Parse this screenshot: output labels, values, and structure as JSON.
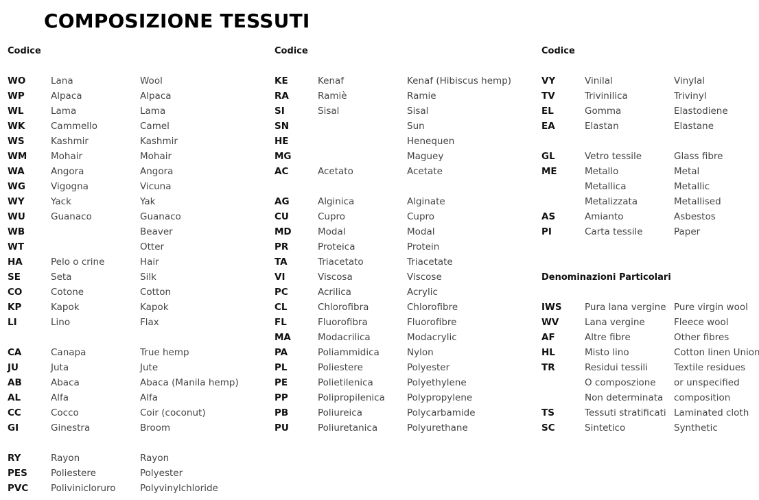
{
  "title": "COMPOSIZIONE TESSUTI",
  "columns": [
    {
      "rows": [
        {
          "header": "Codice"
        },
        {},
        {
          "code": "WO",
          "it": "Lana",
          "en": "Wool"
        },
        {
          "code": "WP",
          "it": "Alpaca",
          "en": "Alpaca"
        },
        {
          "code": "WL",
          "it": "Lama",
          "en": "Lama"
        },
        {
          "code": "WK",
          "it": "Cammello",
          "en": "Camel"
        },
        {
          "code": "WS",
          "it": "Kashmir",
          "en": "Kashmir"
        },
        {
          "code": "WM",
          "it": "Mohair",
          "en": "Mohair"
        },
        {
          "code": "WA",
          "it": "Angora",
          "en": "Angora"
        },
        {
          "code": "WG",
          "it": "Vigogna",
          "en": "Vicuna"
        },
        {
          "code": "WY",
          "it": "Yack",
          "en": "Yak"
        },
        {
          "code": "WU",
          "it": "Guanaco",
          "en": "Guanaco"
        },
        {
          "code": "WB",
          "it": "",
          "en": "Beaver"
        },
        {
          "code": "WT",
          "it": "",
          "en": "Otter"
        },
        {
          "code": "HA",
          "it": "Pelo o crine",
          "en": "Hair"
        },
        {
          "code": "SE",
          "it": "Seta",
          "en": "Silk"
        },
        {
          "code": "CO",
          "it": "Cotone",
          "en": "Cotton"
        },
        {
          "code": "KP",
          "it": "Kapok",
          "en": "Kapok"
        },
        {
          "code": "LI",
          "it": "Lino",
          "en": "Flax"
        },
        {},
        {
          "code": "CA",
          "it": "Canapa",
          "en": "True hemp"
        },
        {
          "code": "JU",
          "it": "Juta",
          "en": "Jute"
        },
        {
          "code": "AB",
          "it": "Abaca",
          "en": "Abaca (Manila hemp)"
        },
        {
          "code": "AL",
          "it": "Alfa",
          "en": "Alfa"
        },
        {
          "code": "CC",
          "it": "Cocco",
          "en": "Coir (coconut)"
        },
        {
          "code": "GI",
          "it": "Ginestra",
          "en": "Broom"
        },
        {},
        {
          "code": "RY",
          "it": "Rayon",
          "en": "Rayon"
        },
        {
          "code": "PES",
          "it": "Poliestere",
          "en": "Polyester"
        },
        {
          "code": "PVC",
          "it": "Polivinicloruro",
          "en": "Polyvinylchloride"
        }
      ]
    },
    {
      "rows": [
        {
          "header": "Codice"
        },
        {},
        {
          "code": "KE",
          "it": "Kenaf",
          "en": "Kenaf (Hibiscus hemp)"
        },
        {
          "code": "RA",
          "it": "Ramiè",
          "en": "Ramie"
        },
        {
          "code": "SI",
          "it": "Sisal",
          "en": "Sisal"
        },
        {
          "code": "SN",
          "it": "",
          "en": "Sun"
        },
        {
          "code": "HE",
          "it": "",
          "en": "Henequen"
        },
        {
          "code": "MG",
          "it": "",
          "en": "Maguey"
        },
        {
          "code": "AC",
          "it": "Acetato",
          "en": "Acetate"
        },
        {},
        {
          "code": "AG",
          "it": "Alginica",
          "en": "Alginate"
        },
        {
          "code": "CU",
          "it": "Cupro",
          "en": "Cupro"
        },
        {
          "code": "MD",
          "it": "Modal",
          "en": "Modal"
        },
        {
          "code": "PR",
          "it": "Proteica",
          "en": "Protein"
        },
        {
          "code": "TA",
          "it": "Triacetato",
          "en": "Triacetate"
        },
        {
          "code": "VI",
          "it": "Viscosa",
          "en": "Viscose"
        },
        {
          "code": "PC",
          "it": "Acrilica",
          "en": "Acrylic"
        },
        {
          "code": "CL",
          "it": "Chlorofibra",
          "en": "Chlorofibre"
        },
        {
          "code": "FL",
          "it": "Fluorofibra",
          "en": "Fluorofibre"
        },
        {
          "code": "MA",
          "it": "Modacrilica",
          "en": "Modacrylic"
        },
        {
          "code": "PA",
          "it": "Poliammidica",
          "en": "Nylon"
        },
        {
          "code": "PL",
          "it": "Poliestere",
          "en": "Polyester"
        },
        {
          "code": "PE",
          "it": "Polietilenica",
          "en": "Polyethylene"
        },
        {
          "code": "PP",
          "it": "Polipropilenica",
          "en": "Polypropylene"
        },
        {
          "code": "PB",
          "it": "Poliureica",
          "en": "Polycarbamide"
        },
        {
          "code": "PU",
          "it": "Poliuretanica",
          "en": "Polyurethane"
        }
      ]
    },
    {
      "rows": [
        {
          "header": "Codice"
        },
        {},
        {
          "code": "VY",
          "it": "Vinilal",
          "en": "Vinylal"
        },
        {
          "code": "TV",
          "it": "Trivinilica",
          "en": "Trivinyl"
        },
        {
          "code": "EL",
          "it": "Gomma",
          "en": "Elastodiene"
        },
        {
          "code": "EA",
          "it": "Elastan",
          "en": "Elastane"
        },
        {},
        {
          "code": "GL",
          "it": "Vetro tessile",
          "en": "Glass fibre"
        },
        {
          "code": "ME",
          "it": "Metallo",
          "en": "Metal"
        },
        {
          "code": "",
          "it": "Metallica",
          "en": "Metallic"
        },
        {
          "code": "",
          "it": "Metalizzata",
          "en": "Metallised"
        },
        {
          "code": "AS",
          "it": "Amianto",
          "en": "Asbestos"
        },
        {
          "code": "PI",
          "it": "Carta tessile",
          "en": "Paper"
        },
        {},
        {},
        {
          "header": "Denominazioni Particolari"
        },
        {},
        {
          "code": "IWS",
          "it": "Pura lana vergine",
          "en": "Pure virgin wool"
        },
        {
          "code": "WV",
          "it": "Lana vergine",
          "en": "Fleece wool"
        },
        {
          "code": "AF",
          "it": "Altre fibre",
          "en": "Other fibres"
        },
        {
          "code": "HL",
          "it": "Misto lino",
          "en": "Cotton linen Union"
        },
        {
          "code": "TR",
          "it": "Residui tessili",
          "en": "Textile residues"
        },
        {
          "code": "",
          "it": "O composzione",
          "en": "or unspecified"
        },
        {
          "code": "",
          "it": "Non determinata",
          "en": "composition"
        },
        {
          "code": "TS",
          "it": "Tessuti stratificati",
          "en": "Laminated cloth"
        },
        {
          "code": "SC",
          "it": "Sintetico",
          "en": "Synthetic"
        }
      ]
    }
  ]
}
